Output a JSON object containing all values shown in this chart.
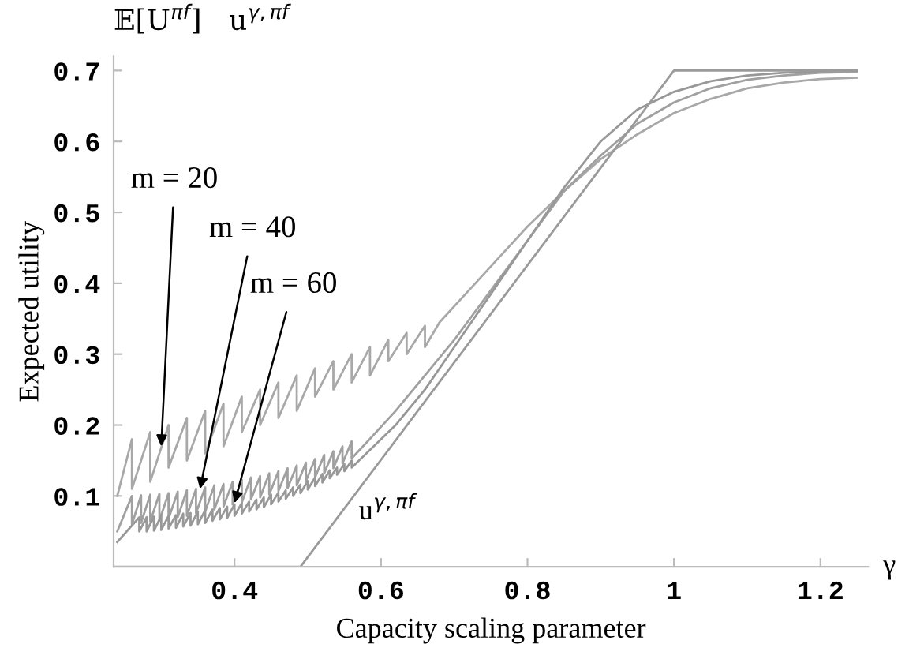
{
  "chart_data": {
    "type": "line",
    "xlabel": "Capacity scaling parameter",
    "ylabel": "Expected utility",
    "xlim": [
      0.235,
      1.265
    ],
    "ylim": [
      0,
      0.72
    ],
    "xticks": [
      0.4,
      0.6,
      0.8,
      1,
      1.2
    ],
    "yticks": [
      0.1,
      0.2,
      0.3,
      0.4,
      0.5,
      0.6,
      0.7
    ],
    "grid": false,
    "annotations": [
      "𝔼[U$^{πf}$]   u$^{γ,πf}$",
      "γ",
      {
        "text": "m = 20",
        "x": 0.3,
        "y": 0.17
      },
      {
        "text": "m = 40",
        "x": 0.353,
        "y": 0.11
      },
      {
        "text": "m = 60",
        "x": 0.4,
        "y": 0.09
      },
      "u$^{γ,πf}$"
    ],
    "series": [
      {
        "color": "#a8a8a8",
        "x": [
          0.24,
          0.26,
          0.26,
          0.285,
          0.285,
          0.31,
          0.31,
          0.335,
          0.335,
          0.36,
          0.36,
          0.385,
          0.385,
          0.41,
          0.41,
          0.435,
          0.435,
          0.46,
          0.46,
          0.485,
          0.485,
          0.51,
          0.51,
          0.535,
          0.535,
          0.56,
          0.56,
          0.585,
          0.585,
          0.61,
          0.61,
          0.635,
          0.635,
          0.66,
          0.66,
          0.68,
          0.72,
          0.76,
          0.8,
          0.85,
          0.9,
          0.95,
          1.0,
          1.05,
          1.1,
          1.15,
          1.2,
          1.25
        ],
        "values": [
          0.1,
          0.18,
          0.11,
          0.19,
          0.12,
          0.2,
          0.14,
          0.21,
          0.15,
          0.22,
          0.16,
          0.23,
          0.17,
          0.24,
          0.19,
          0.25,
          0.2,
          0.26,
          0.21,
          0.27,
          0.22,
          0.28,
          0.24,
          0.29,
          0.25,
          0.3,
          0.26,
          0.31,
          0.27,
          0.32,
          0.29,
          0.33,
          0.3,
          0.34,
          0.31,
          0.345,
          0.39,
          0.435,
          0.48,
          0.53,
          0.575,
          0.61,
          0.64,
          0.66,
          0.675,
          0.683,
          0.688,
          0.69
        ]
      },
      {
        "color": "#a0a0a0",
        "x": [
          0.24,
          0.26,
          0.26,
          0.2725,
          0.2725,
          0.285,
          0.285,
          0.2975,
          0.2975,
          0.31,
          0.31,
          0.3225,
          0.3225,
          0.335,
          0.335,
          0.3475,
          0.3475,
          0.36,
          0.36,
          0.3725,
          0.3725,
          0.385,
          0.385,
          0.3975,
          0.3975,
          0.41,
          0.41,
          0.4225,
          0.4225,
          0.435,
          0.435,
          0.4475,
          0.4475,
          0.46,
          0.46,
          0.4725,
          0.4725,
          0.485,
          0.485,
          0.4975,
          0.4975,
          0.51,
          0.51,
          0.5225,
          0.5225,
          0.535,
          0.535,
          0.5475,
          0.5475,
          0.56,
          0.56,
          0.58,
          0.62,
          0.66,
          0.7,
          0.75,
          0.8,
          0.85,
          0.9,
          0.95,
          1.0,
          1.05,
          1.1,
          1.15,
          1.2,
          1.25
        ],
        "values": [
          0.05,
          0.1,
          0.06,
          0.101,
          0.062,
          0.102,
          0.064,
          0.103,
          0.065,
          0.104,
          0.068,
          0.106,
          0.07,
          0.108,
          0.072,
          0.11,
          0.076,
          0.112,
          0.078,
          0.115,
          0.081,
          0.117,
          0.085,
          0.12,
          0.088,
          0.123,
          0.091,
          0.126,
          0.095,
          0.128,
          0.098,
          0.132,
          0.102,
          0.135,
          0.107,
          0.139,
          0.111,
          0.143,
          0.115,
          0.147,
          0.121,
          0.152,
          0.126,
          0.158,
          0.132,
          0.163,
          0.139,
          0.17,
          0.146,
          0.177,
          0.153,
          0.175,
          0.22,
          0.27,
          0.32,
          0.39,
          0.46,
          0.53,
          0.58,
          0.625,
          0.655,
          0.675,
          0.687,
          0.693,
          0.697,
          0.698
        ]
      },
      {
        "color": "#989898",
        "x": [
          0.24,
          0.27,
          0.27,
          0.28,
          0.28,
          0.29,
          0.29,
          0.3,
          0.3,
          0.31,
          0.31,
          0.32,
          0.32,
          0.33,
          0.33,
          0.34,
          0.34,
          0.35,
          0.35,
          0.36,
          0.36,
          0.37,
          0.37,
          0.38,
          0.38,
          0.39,
          0.39,
          0.4,
          0.4,
          0.41,
          0.41,
          0.42,
          0.42,
          0.43,
          0.43,
          0.44,
          0.44,
          0.45,
          0.45,
          0.46,
          0.46,
          0.47,
          0.47,
          0.48,
          0.48,
          0.49,
          0.49,
          0.5,
          0.5,
          0.51,
          0.51,
          0.52,
          0.52,
          0.53,
          0.53,
          0.54,
          0.54,
          0.55,
          0.55,
          0.56,
          0.56,
          0.58,
          0.62,
          0.66,
          0.7,
          0.75,
          0.8,
          0.85,
          0.9,
          0.95,
          1.0,
          1.05,
          1.1,
          1.15,
          1.2,
          1.25
        ],
        "values": [
          0.035,
          0.07,
          0.05,
          0.07,
          0.05,
          0.071,
          0.051,
          0.072,
          0.052,
          0.072,
          0.054,
          0.073,
          0.055,
          0.075,
          0.057,
          0.076,
          0.058,
          0.078,
          0.06,
          0.08,
          0.062,
          0.081,
          0.065,
          0.083,
          0.067,
          0.085,
          0.069,
          0.088,
          0.072,
          0.09,
          0.075,
          0.092,
          0.078,
          0.095,
          0.081,
          0.098,
          0.084,
          0.102,
          0.088,
          0.105,
          0.092,
          0.108,
          0.096,
          0.112,
          0.1,
          0.116,
          0.104,
          0.121,
          0.109,
          0.126,
          0.114,
          0.131,
          0.119,
          0.136,
          0.125,
          0.14,
          0.13,
          0.145,
          0.135,
          0.15,
          0.14,
          0.16,
          0.2,
          0.25,
          0.31,
          0.385,
          0.46,
          0.535,
          0.6,
          0.645,
          0.67,
          0.685,
          0.693,
          0.697,
          0.699,
          0.7
        ]
      },
      {
        "color": "#9a9a9a",
        "x": [
          0.235,
          0.49,
          1.0,
          1.25
        ],
        "values": [
          0,
          0,
          0.7,
          0.7
        ]
      }
    ]
  }
}
